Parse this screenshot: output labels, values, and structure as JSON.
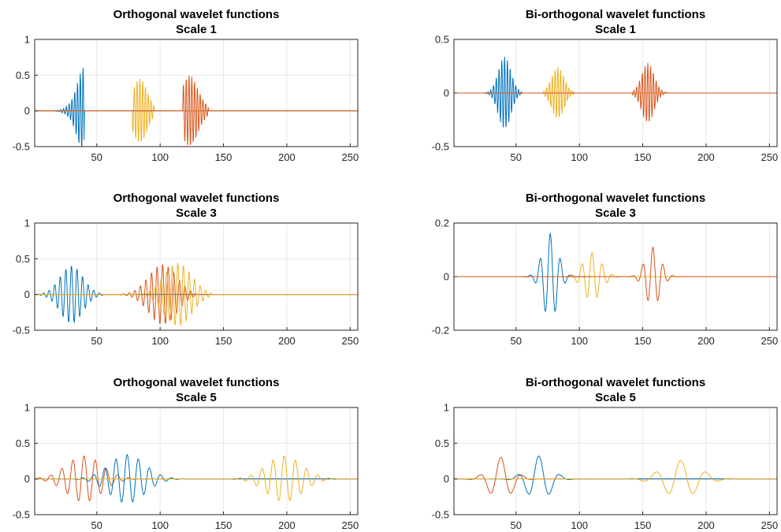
{
  "figure": {
    "background": "#ffffff",
    "grid": true,
    "grid_color": "#e6e6e6",
    "axis_color": "#262626"
  },
  "palette": [
    "#0072BD",
    "#D95319",
    "#EDB120"
  ],
  "chart_data": [
    {
      "type": "line",
      "title": "Orthogonal wavelet functions",
      "subtitle": "Scale 1",
      "xlabel": "",
      "ylabel": "",
      "xlim": [
        1,
        256
      ],
      "ylim": [
        -0.5,
        1
      ],
      "xticks": [
        50,
        100,
        150,
        200,
        250
      ],
      "yticks": [
        -0.5,
        0,
        0.5,
        1
      ],
      "ytick_labels": [
        "-0.5",
        "0",
        "0.5",
        "1"
      ],
      "series": [
        {
          "color": "#0072BD",
          "center": 37,
          "amplitude": 0.52,
          "width": 8,
          "period": 2.2,
          "support": [
            5,
            40
          ],
          "skew": 0.8
        },
        {
          "color": "#EDB120",
          "center": 84,
          "amplitude": 0.45,
          "width": 6,
          "period": 2.2,
          "support": [
            78,
            95
          ],
          "skew": 0
        },
        {
          "color": "#D95319",
          "center": 125,
          "amplitude": 0.48,
          "width": 7,
          "period": 2.2,
          "support": [
            118,
            138
          ],
          "skew": -0.3
        }
      ]
    },
    {
      "type": "line",
      "title": "Bi-orthogonal wavelet functions",
      "subtitle": "Scale 1",
      "xlabel": "",
      "ylabel": "",
      "xlim": [
        1,
        256
      ],
      "ylim": [
        -0.5,
        0.5
      ],
      "xticks": [
        50,
        100,
        150,
        200,
        250
      ],
      "yticks": [
        -0.5,
        0,
        0.5
      ],
      "ytick_labels": [
        "-0.5",
        "0",
        "0.5"
      ],
      "series": [
        {
          "color": "#0072BD",
          "center": 41,
          "amplitude": 0.34,
          "width": 5,
          "period": 2.2,
          "support": [
            25,
            55
          ],
          "skew": 0
        },
        {
          "color": "#EDB120",
          "center": 83,
          "amplitude": 0.24,
          "width": 5,
          "period": 2.2,
          "support": [
            72,
            96
          ],
          "skew": 0
        },
        {
          "color": "#D95319",
          "center": 154,
          "amplitude": 0.28,
          "width": 5,
          "period": 2.2,
          "support": [
            142,
            170
          ],
          "skew": 0
        }
      ]
    },
    {
      "type": "line",
      "title": "Orthogonal wavelet functions",
      "subtitle": "Scale 3",
      "xlabel": "",
      "ylabel": "",
      "xlim": [
        1,
        256
      ],
      "ylim": [
        -0.5,
        1
      ],
      "xticks": [
        50,
        100,
        150,
        200,
        250
      ],
      "yticks": [
        -0.5,
        0,
        0.5,
        1
      ],
      "ytick_labels": [
        "-0.5",
        "0",
        "0.5",
        "1"
      ],
      "series": [
        {
          "color": "#0072BD",
          "center": 30,
          "amplitude": 0.4,
          "width": 9,
          "period": 4.4,
          "support": [
            3,
            55
          ],
          "skew": 0
        },
        {
          "color": "#D95319",
          "center": 102,
          "amplitude": 0.42,
          "width": 11,
          "period": 4.4,
          "support": [
            60,
            128
          ],
          "skew": 0
        },
        {
          "color": "#EDB120",
          "center": 114,
          "amplitude": 0.44,
          "width": 11,
          "period": 4.4,
          "support": [
            75,
            140
          ],
          "skew": 0
        }
      ]
    },
    {
      "type": "line",
      "title": "Bi-orthogonal wavelet functions",
      "subtitle": "Scale 3",
      "xlabel": "",
      "ylabel": "",
      "xlim": [
        1,
        256
      ],
      "ylim": [
        -0.2,
        0.2
      ],
      "xticks": [
        50,
        100,
        150,
        200,
        250
      ],
      "yticks": [
        -0.2,
        0,
        0.2
      ],
      "ytick_labels": [
        "-0.2",
        "0",
        "0.2"
      ],
      "series": [
        {
          "color": "#0072BD",
          "center": 77,
          "amplitude": 0.16,
          "width": 6,
          "period": 8,
          "support": [
            55,
            110
          ],
          "skew": 0
        },
        {
          "color": "#EDB120",
          "center": 110,
          "amplitude": 0.09,
          "width": 7,
          "period": 8,
          "support": [
            85,
            140
          ],
          "skew": 0
        },
        {
          "color": "#D95319",
          "center": 158,
          "amplitude": 0.11,
          "width": 6,
          "period": 8,
          "support": [
            130,
            190
          ],
          "skew": 0
        }
      ]
    },
    {
      "type": "line",
      "title": "Orthogonal wavelet functions",
      "subtitle": "Scale 5",
      "xlabel": "",
      "ylabel": "",
      "xlim": [
        1,
        256
      ],
      "ylim": [
        -0.5,
        1
      ],
      "xticks": [
        50,
        100,
        150,
        200,
        250
      ],
      "yticks": [
        -0.5,
        0,
        0.5,
        1
      ],
      "ytick_labels": [
        "-0.5",
        "0",
        "0.5",
        "1"
      ],
      "series": [
        {
          "color": "#D95319",
          "center": 40,
          "amplitude": 0.32,
          "width": 14,
          "period": 8.8,
          "support": [
            2,
            100
          ],
          "skew": 0
        },
        {
          "color": "#0072BD",
          "center": 74,
          "amplitude": 0.34,
          "width": 14,
          "period": 8.8,
          "support": [
            2,
            120
          ],
          "skew": 0
        },
        {
          "color": "#EDB120",
          "center": 198,
          "amplitude": 0.32,
          "width": 14,
          "period": 8.8,
          "support": [
            150,
            250
          ],
          "skew": 0
        }
      ]
    },
    {
      "type": "line",
      "title": "Bi-orthogonal wavelet functions",
      "subtitle": "Scale 5",
      "xlabel": "",
      "ylabel": "",
      "xlim": [
        1,
        256
      ],
      "ylim": [
        -0.5,
        1
      ],
      "xticks": [
        50,
        100,
        150,
        200,
        250
      ],
      "yticks": [
        -0.5,
        0,
        0.5,
        1
      ],
      "ytick_labels": [
        "-0.5",
        "0",
        "0.5",
        "1"
      ],
      "series": [
        {
          "color": "#D95319",
          "center": 38,
          "amplitude": 0.3,
          "width": 9,
          "period": 17,
          "support": [
            2,
            90
          ],
          "skew": 0
        },
        {
          "color": "#0072BD",
          "center": 68,
          "amplitude": 0.32,
          "width": 9,
          "period": 17,
          "support": [
            30,
            110
          ],
          "skew": 0
        },
        {
          "color": "#EDB120",
          "center": 180,
          "amplitude": 0.26,
          "width": 14,
          "period": 20,
          "support": [
            140,
            235
          ],
          "skew": 0
        }
      ]
    }
  ]
}
